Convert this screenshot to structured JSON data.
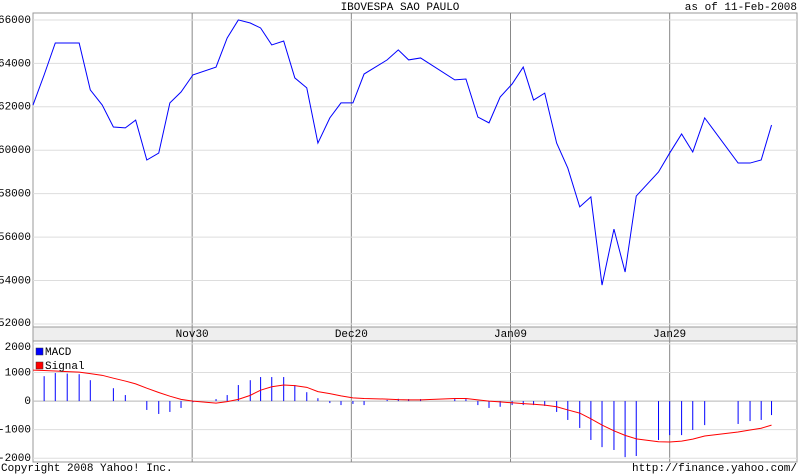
{
  "chart_data": [
    {
      "type": "line",
      "title": "IBOVESPA SAO PAULO",
      "subtitle": "as of 11-Feb-2008",
      "x": [
        0,
        1.4,
        2.8,
        4.3,
        5.8,
        7.2,
        8.7,
        10.1,
        11.6,
        12.9,
        14.3,
        15.8,
        17.2,
        18.6,
        20.1,
        23.0,
        24.4,
        25.8,
        27.3,
        28.6,
        30.0,
        31.5,
        32.9,
        34.4,
        35.8,
        37.3,
        38.7,
        40.2,
        41.6,
        44.5,
        45.9,
        47.2,
        48.7,
        53.0,
        54.4,
        55.9,
        57.3,
        58.7,
        60.2,
        61.6,
        62.9,
        64.3,
        65.8,
        67.2,
        68.7,
        70.1,
        71.5,
        73.0,
        74.4,
        75.8,
        78.6,
        80.0,
        81.5,
        82.9,
        84.4,
        88.6,
        90.1,
        91.5,
        92.8
      ],
      "values": [
        62080,
        63470,
        64940,
        64940,
        64940,
        62780,
        62080,
        61070,
        61030,
        61390,
        59550,
        59870,
        62180,
        62680,
        63470,
        63830,
        65170,
        66000,
        65860,
        65630,
        64850,
        65030,
        63330,
        62870,
        60330,
        61490,
        62180,
        62180,
        63510,
        64160,
        64620,
        64160,
        64250,
        63240,
        63280,
        61530,
        61260,
        62450,
        63050,
        63830,
        62310,
        62630,
        60330,
        59180,
        57390,
        57850,
        53790,
        56370,
        54390,
        57890,
        59000,
        59870,
        60750,
        59920,
        61490,
        59410,
        59410,
        59550,
        61160
      ],
      "color": "#0000ff",
      "xlim": [
        0,
        96
      ],
      "xticks": [
        {
          "value": 20,
          "label": "Nov30"
        },
        {
          "value": 40,
          "label": "Dec20"
        },
        {
          "value": 60,
          "label": "Jan09"
        },
        {
          "value": 80,
          "label": "Jan29"
        }
      ],
      "ylim": [
        51860,
        66320
      ],
      "yticks": [
        52000,
        54000,
        56000,
        58000,
        60000,
        62000,
        64000,
        66000
      ],
      "grid": true
    },
    {
      "type": "combo",
      "x": [
        0,
        1.4,
        2.8,
        4.3,
        5.8,
        7.2,
        8.7,
        10.1,
        11.6,
        12.9,
        14.3,
        15.8,
        17.2,
        18.6,
        20.1,
        23.0,
        24.4,
        25.8,
        27.3,
        28.6,
        30.0,
        31.5,
        32.9,
        34.4,
        35.8,
        37.3,
        38.7,
        40.2,
        41.6,
        44.5,
        45.9,
        47.2,
        48.7,
        53.0,
        54.4,
        55.9,
        57.3,
        58.7,
        60.2,
        61.6,
        62.9,
        64.3,
        65.8,
        67.2,
        68.7,
        70.1,
        71.5,
        73.0,
        74.4,
        75.8,
        78.6,
        80.0,
        81.5,
        82.9,
        84.4,
        88.6,
        90.1,
        91.5,
        92.8
      ],
      "series": [
        {
          "name": "MACD",
          "style": "bar",
          "color": "#0000ff",
          "values": [
            null,
            870,
            980,
            960,
            940,
            730,
            null,
            450,
            210,
            null,
            -310,
            -450,
            -380,
            -240,
            -40,
            70,
            210,
            560,
            730,
            840,
            840,
            840,
            560,
            310,
            100,
            -70,
            -140,
            -100,
            -140,
            40,
            80,
            70,
            70,
            70,
            70,
            -140,
            -240,
            -200,
            -140,
            -140,
            -140,
            -170,
            -380,
            -660,
            -940,
            -1360,
            -1610,
            -1710,
            -1960,
            -1920,
            -1360,
            -1190,
            -1190,
            -1010,
            -840,
            -800,
            -700,
            -660,
            -490
          ]
        },
        {
          "name": "Signal",
          "style": "line",
          "color": "#ff0000",
          "values": [
            1080,
            1070,
            1050,
            1030,
            1010,
            960,
            900,
            800,
            700,
            600,
            450,
            300,
            170,
            60,
            0,
            -70,
            -20,
            60,
            200,
            380,
            500,
            560,
            540,
            480,
            330,
            260,
            180,
            110,
            90,
            70,
            50,
            40,
            40,
            90,
            90,
            40,
            0,
            -30,
            -60,
            -90,
            -110,
            -140,
            -200,
            -310,
            -420,
            -620,
            -840,
            -1040,
            -1200,
            -1320,
            -1420,
            -1430,
            -1400,
            -1330,
            -1220,
            -1080,
            -1010,
            -950,
            -840
          ]
        }
      ],
      "xlim": [
        0,
        96
      ],
      "ylim": [
        -2130,
        2100
      ],
      "yticks": [
        -2000,
        -1000,
        0,
        1000,
        2000
      ],
      "grid": true,
      "legend": "top-left"
    }
  ],
  "copyright": "Copyright 2008 Yahoo! Inc.",
  "source": "http://finance.yahoo.com/"
}
